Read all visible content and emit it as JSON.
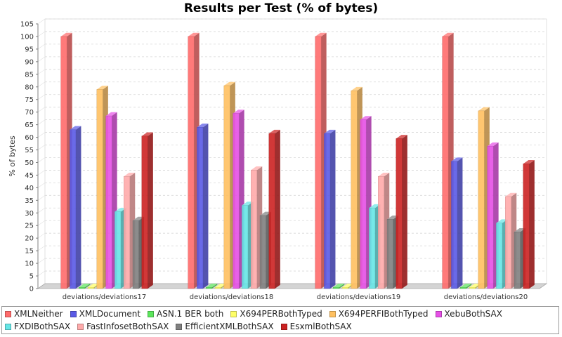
{
  "chart_data": {
    "type": "bar",
    "title": "Results per Test (% of bytes)",
    "xlabel": "",
    "ylabel": "% of bytes",
    "ylim": [
      0,
      105
    ],
    "yticks": [
      0,
      5,
      10,
      15,
      20,
      25,
      30,
      35,
      40,
      45,
      50,
      55,
      60,
      65,
      70,
      75,
      80,
      85,
      90,
      95,
      100,
      105
    ],
    "grid": true,
    "legend_position": "bottom",
    "categories": [
      "deviations/deviations17",
      "deviations/deviations18",
      "deviations/deviations19",
      "deviations/deviations20"
    ],
    "series": [
      {
        "name": "XMLNeither",
        "color": "#ff6b6b",
        "values": [
          100,
          100,
          100,
          100
        ]
      },
      {
        "name": "XMLDocument",
        "color": "#5a5ae6",
        "values": [
          63,
          64,
          61.5,
          50.5
        ]
      },
      {
        "name": "ASN.1 BER both",
        "color": "#5ce65c",
        "values": [
          0.5,
          0.5,
          0.5,
          0.5
        ]
      },
      {
        "name": "X694PERBothTyped",
        "color": "#ffff66",
        "values": [
          0.5,
          0.5,
          0.5,
          0.5
        ]
      },
      {
        "name": "X694PERFIBothTyped",
        "color": "#ffc060",
        "values": [
          79,
          80.5,
          78.5,
          70.5
        ]
      },
      {
        "name": "XebuBothSAX",
        "color": "#e650e6",
        "values": [
          68.5,
          69.5,
          67,
          56.5
        ]
      },
      {
        "name": "FXDIBothSAX",
        "color": "#66e6e6",
        "values": [
          30.5,
          33,
          32,
          26
        ]
      },
      {
        "name": "FastInfosetBothSAX",
        "color": "#ffaaaa",
        "values": [
          44.5,
          47,
          44.5,
          36.5
        ]
      },
      {
        "name": "EfficientXMLBothSAX",
        "color": "#808080",
        "values": [
          27,
          29,
          27.5,
          22.5
        ]
      },
      {
        "name": "EsxmlBothSAX",
        "color": "#cc2222",
        "values": [
          60.5,
          61.5,
          59.5,
          49.5
        ]
      }
    ]
  }
}
